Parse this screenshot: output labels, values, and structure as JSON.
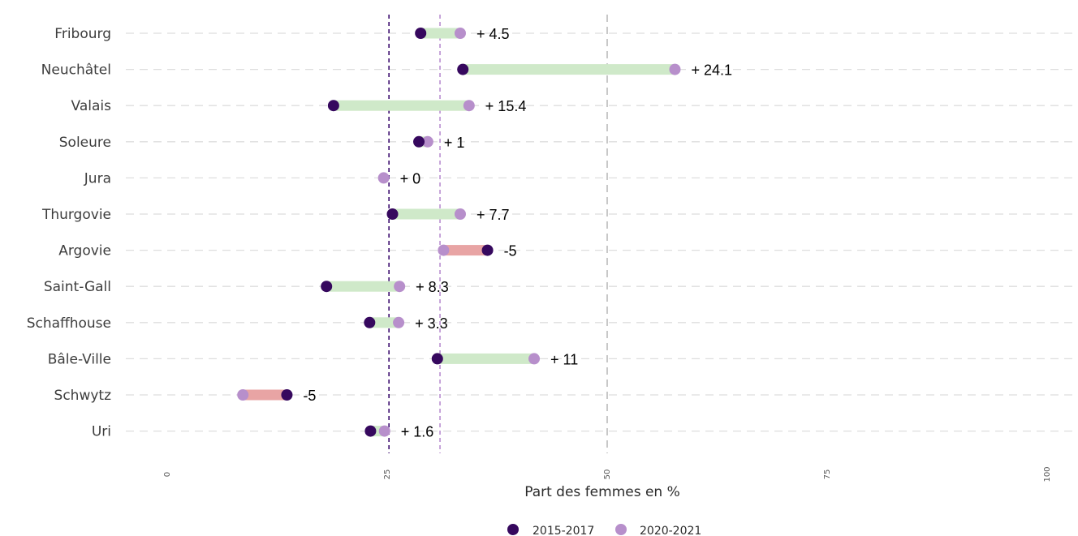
{
  "chart_data": {
    "type": "dumbbell",
    "xlabel": "Part des femmes en %",
    "xlim": [
      0,
      100
    ],
    "x_ticks": [
      0,
      25,
      50,
      75,
      100
    ],
    "grid": "horizontal dashed",
    "legend_position": "bottom",
    "series_names": [
      "2015-2017",
      "2020-2021"
    ],
    "categories": [
      "Fribourg",
      "Neuchâtel",
      "Valais",
      "Soleure",
      "Jura",
      "Thurgovie",
      "Argovie",
      "Saint-Gall",
      "Schaffhouse",
      "Bâle-Ville",
      "Schwytz",
      "Uri"
    ],
    "series": [
      {
        "name": "2015-2017",
        "values": [
          28.8,
          33.6,
          18.9,
          28.6,
          null,
          25.6,
          36.4,
          18.1,
          23.0,
          30.7,
          13.6,
          23.1
        ]
      },
      {
        "name": "2020-2021",
        "values": [
          33.3,
          57.7,
          34.3,
          29.6,
          24.6,
          33.3,
          31.4,
          26.4,
          26.3,
          41.7,
          8.6,
          24.7
        ]
      }
    ],
    "delta_labels": [
      "+ 4.5",
      "+ 24.1",
      "+ 15.4",
      "+ 1",
      "+ 0",
      "+ 7.7",
      "-5",
      "+ 8.3",
      "+ 3.3",
      "+ 11",
      "-5",
      "+ 1.6"
    ],
    "reference_lines": [
      {
        "value": 25.2,
        "color": "#3a0b6e"
      },
      {
        "value": 31,
        "color": "#b98fd0"
      },
      {
        "value": 50,
        "color": "#c8c8c8"
      }
    ],
    "colors": {
      "2015-2017": "#36085e",
      "2020-2021": "#b78fcb",
      "increase": "#cfe9c9",
      "decrease": "#e8a4a4"
    }
  }
}
